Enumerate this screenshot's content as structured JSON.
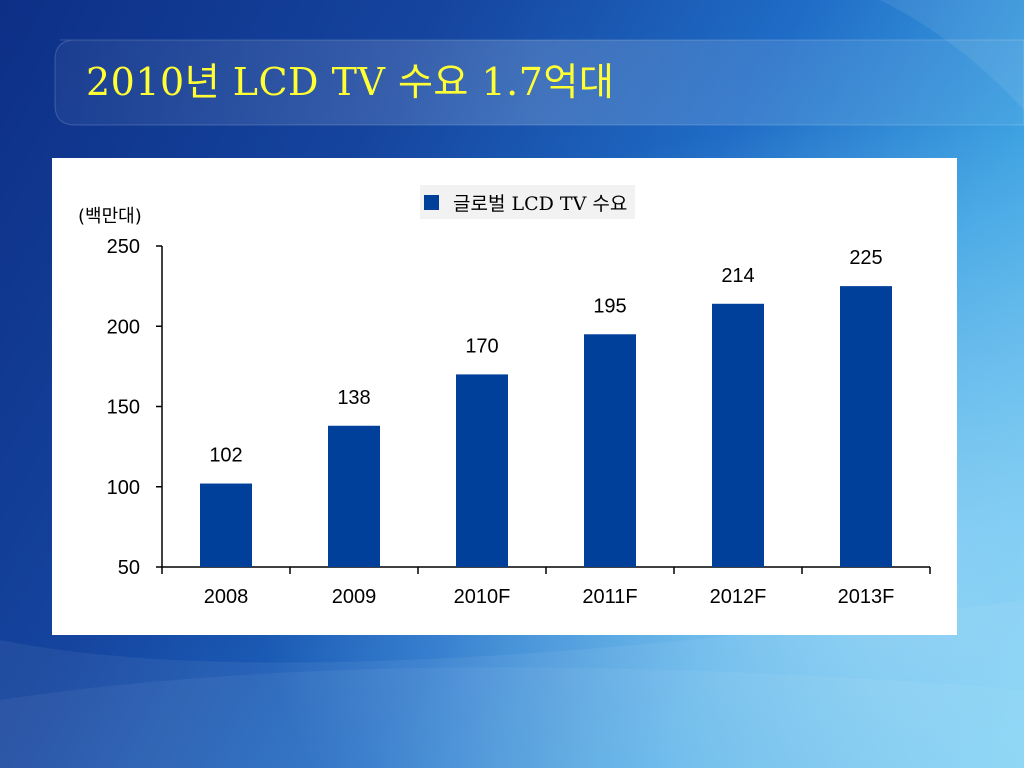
{
  "slide": {
    "title": "2010년 LCD TV 수요 1.7억대"
  },
  "colors": {
    "bar": "#003f9a",
    "title": "#ffff33"
  },
  "chart_data": {
    "type": "bar",
    "title": "",
    "ylabel": "(백만대)",
    "xlabel": "",
    "categories": [
      "2008",
      "2009",
      "2010F",
      "2011F",
      "2012F",
      "2013F"
    ],
    "series": [
      {
        "name": "글로벌 LCD TV 수요",
        "values": [
          102,
          138,
          170,
          195,
          214,
          225
        ]
      }
    ],
    "ylim": [
      50,
      250
    ],
    "yticks": [
      50,
      100,
      150,
      200,
      250
    ],
    "grid": false,
    "legend_position": "top-center",
    "data_labels": true
  }
}
